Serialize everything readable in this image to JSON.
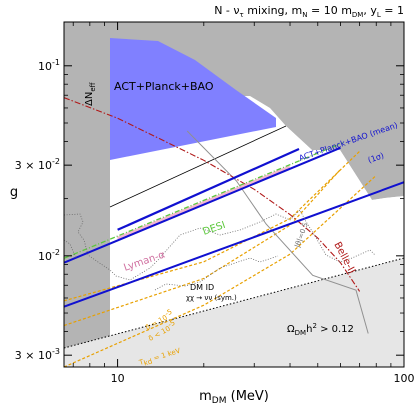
{
  "chart_data": {
    "type": "line",
    "title": "N - ντ mixing, mN = 10 mDM, yL = 1",
    "title_parts": {
      "a": "N - ν",
      "a_sub": "τ",
      "b": " mixing, m",
      "b_sub": "N",
      "c": " = 10 m",
      "c_sub": "DM",
      "d": ",  y",
      "d_sub": "L",
      "e": " = 1"
    },
    "xlabel": "mDM  (MeV)",
    "xlabel_parts": {
      "a": "m",
      "sub": "DM",
      "b": "  (MeV)"
    },
    "ylabel": "g",
    "xscale": "log",
    "yscale": "log",
    "xlim": [
      6.5,
      100
    ],
    "ylim": [
      0.0026,
      0.17
    ],
    "xticks": [
      {
        "value": 10,
        "label": "10"
      },
      {
        "value": 100,
        "label": "100"
      }
    ],
    "yticks": [
      {
        "value": 0.1,
        "base": "10",
        "exp": "-1"
      },
      {
        "value": 0.03,
        "base": "3 × 10",
        "exp": "-2"
      },
      {
        "value": 0.01,
        "base": "10",
        "exp": "-2"
      },
      {
        "value": 0.003,
        "base": "3 × 10",
        "exp": "-3"
      }
    ],
    "labels": {
      "act": "ACT+Planck+BAO",
      "dneff_a": "ΔN",
      "dneff_sub": "eff",
      "act_mean": "ACT+Planck+BAO (mean)",
      "one_sigma": "(1σ)",
      "desi": "DESI",
      "lyman": "Lyman-α",
      "belle": "Belle-II",
      "theta": "|θ|=0.5",
      "dmid_1": "DM ID",
      "dmid_2": "χχ → νν (sym.)",
      "delta_a": "δ = 10",
      "delta_a_exp": "-5",
      "delta_b": "δ < 10",
      "delta_b_exp": "-5",
      "tkd_a": "T",
      "tkd_sub": "kd",
      "tkd_b": " = 1 keV",
      "omega_a": "Ω",
      "omega_sub": "DM",
      "omega_b": "h",
      "omega_exp": "2",
      "omega_c": " > 0.12"
    },
    "colors": {
      "excluded_gray": "#b4b4b4",
      "light_gray": "#e6e6e6",
      "act_region": "#8080ff",
      "act_line": "#1010d0",
      "desi": "#5cc83c",
      "lyman": "#f0a0c0",
      "belle": "#b01818",
      "orange": "#e8a000",
      "theta_line": "#909090",
      "dotted": "#6a6a6a"
    },
    "series": [
      {
        "key": "act_mean",
        "x": [
          10,
          43
        ],
        "y": [
          0.0137,
          0.0365
        ]
      },
      {
        "key": "act_upper",
        "x": [
          6.5,
          60
        ],
        "y": [
          0.0092,
          0.037
        ]
      },
      {
        "key": "act_lower",
        "x": [
          6.5,
          100
        ],
        "y": [
          0.0054,
          0.0244
        ]
      },
      {
        "key": "desi",
        "x": [
          6.5,
          61
        ],
        "y": [
          0.0097,
          0.0393
        ]
      },
      {
        "key": "lyman",
        "x": [
          10,
          40
        ],
        "y": [
          0.0123,
          0.0292
        ]
      },
      {
        "key": "belle",
        "x": [
          6.5,
          10,
          20,
          30,
          40,
          50,
          60,
          70
        ],
        "y": [
          0.068,
          0.053,
          0.0318,
          0.0224,
          0.0165,
          0.0124,
          0.0092,
          0.0065
        ]
      },
      {
        "key": "delta_1",
        "x": [
          6.5,
          20,
          40,
          70
        ],
        "y": [
          0.0058,
          0.0093,
          0.0157,
          0.0355
        ]
      },
      {
        "key": "delta_2",
        "x": [
          6.5,
          20,
          40,
          60
        ],
        "y": [
          0.0043,
          0.0076,
          0.0145,
          0.0285
        ]
      },
      {
        "key": "tkd",
        "x": [
          6.5,
          20,
          40,
          80
        ],
        "y": [
          0.0026,
          0.0055,
          0.0102,
          0.0265
        ]
      },
      {
        "key": "theta",
        "x": [
          17.5,
          26,
          33,
          48,
          68,
          75
        ],
        "y": [
          0.0454,
          0.0248,
          0.0147,
          0.0079,
          0.0066,
          0.0039
        ]
      }
    ]
  }
}
